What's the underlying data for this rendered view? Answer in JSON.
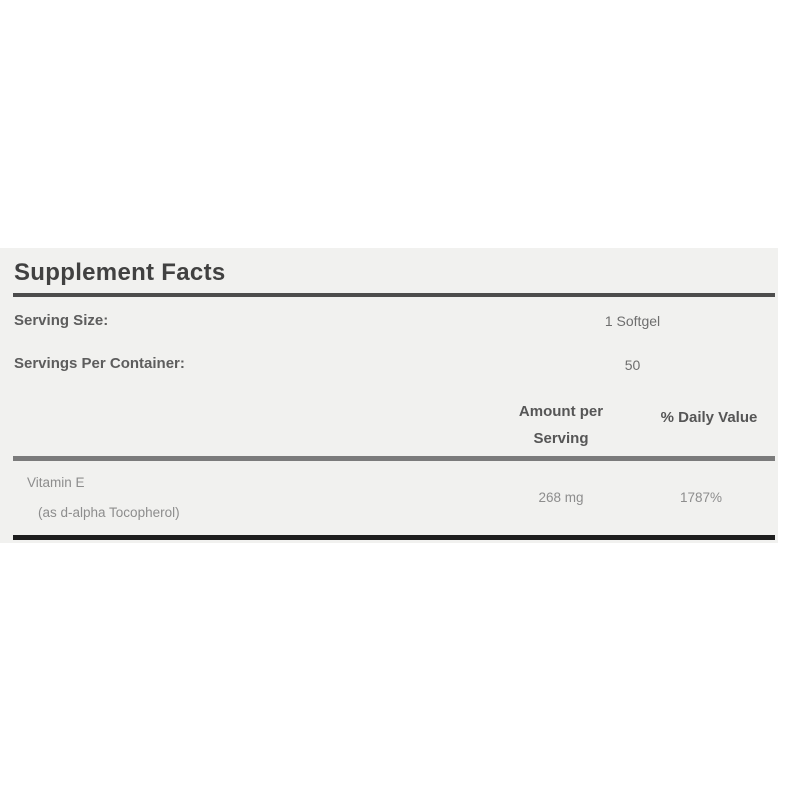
{
  "supplement_facts": {
    "title": "Supplement Facts",
    "serving_size": {
      "label": "Serving Size:",
      "value": "1 Softgel"
    },
    "servings_per_container": {
      "label": "Servings Per Container:",
      "value": "50"
    },
    "columns": {
      "amount_header": "Amount per Serving",
      "daily_value_header": "% Daily Value"
    },
    "rows": [
      {
        "name": "Vitamin E",
        "detail": "(as d-alpha Tocopherol)",
        "amount": "268 mg",
        "daily_value": "1787%"
      }
    ],
    "colors": {
      "panel_background": "#f1f1ef",
      "page_background": "#ffffff",
      "title_text": "#414141",
      "label_text": "#5d5d5d",
      "value_text": "#6e6e6e",
      "nutrient_text": "#8d8d8d",
      "header_rule": "#4c4c4c",
      "mid_rule": "#7b7b7b",
      "bottom_rule": "#1e1e1e"
    }
  }
}
